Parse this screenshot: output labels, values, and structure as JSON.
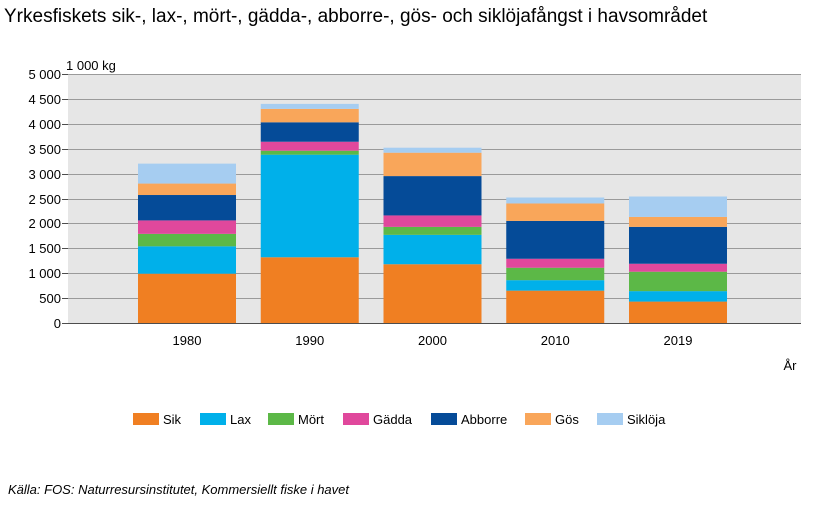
{
  "title": "Yrkesfiskets sik-, lax-, mört-, gädda-, abborre-, gös- och siklöjafångst i havsområdet",
  "source": "Källa: FOS: Naturresursinstitutet, Kommersiellt fiske i havet",
  "chart_data": {
    "type": "bar",
    "stacked": true,
    "unit_label": "1 000 kg",
    "xlabel": "År",
    "ylim": [
      0,
      5000
    ],
    "yticks": [
      0,
      500,
      1000,
      1500,
      2000,
      2500,
      3000,
      3500,
      4000,
      4500,
      5000
    ],
    "ytick_labels": [
      "0",
      "500",
      "1 000",
      "1 500",
      "2 000",
      "2 500",
      "3 000",
      "3 500",
      "4 000",
      "4 500",
      "5 000"
    ],
    "grid": true,
    "legend_position": "bottom",
    "categories": [
      "1980",
      "1990",
      "2000",
      "2010",
      "2019"
    ],
    "series": [
      {
        "name": "Sik",
        "color": "#f07f22",
        "values": [
          990,
          1320,
          1180,
          650,
          430
        ]
      },
      {
        "name": "Lax",
        "color": "#00b0ea",
        "values": [
          550,
          2060,
          590,
          210,
          210
        ]
      },
      {
        "name": "Mört",
        "color": "#5cb847",
        "values": [
          250,
          80,
          160,
          250,
          390
        ]
      },
      {
        "name": "Gädda",
        "color": "#e0489c",
        "values": [
          270,
          180,
          230,
          180,
          160
        ]
      },
      {
        "name": "Abborre",
        "color": "#054b98",
        "values": [
          510,
          390,
          790,
          760,
          740
        ]
      },
      {
        "name": "Gös",
        "color": "#f9a65a",
        "values": [
          230,
          270,
          470,
          350,
          200
        ]
      },
      {
        "name": "Siklöja",
        "color": "#a6cdf1",
        "values": [
          400,
          100,
          100,
          120,
          410
        ]
      }
    ]
  }
}
